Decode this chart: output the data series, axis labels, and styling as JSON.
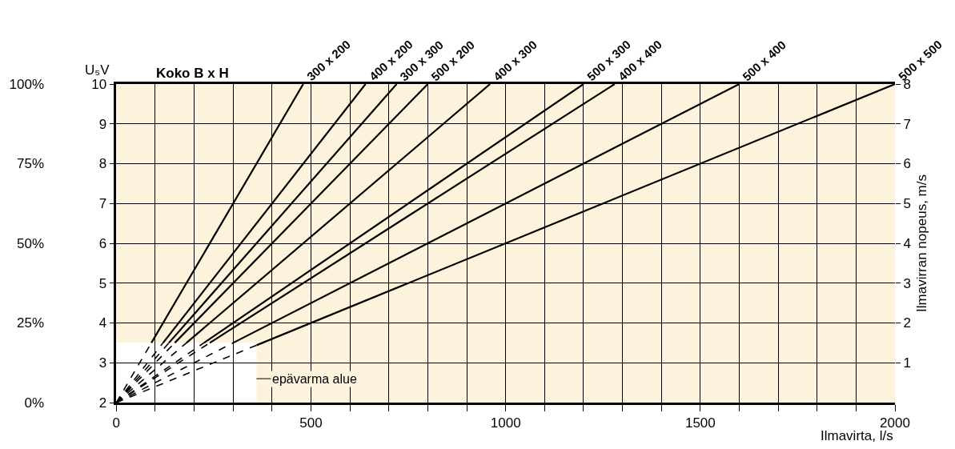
{
  "chart_data": {
    "type": "line",
    "legend_title": "Koko B x H",
    "ylabel": "U₅V",
    "y2label": "Ilmavirran nopeus, m/s",
    "xlabel": "Ilmavirta, l/s",
    "xlim": [
      0,
      2000
    ],
    "xticks": [
      0,
      {
        "value": 100,
        "label": null
      },
      {
        "value": 200,
        "label": null
      },
      {
        "value": 300,
        "label": null
      },
      {
        "value": 400,
        "label": null
      },
      500,
      {
        "value": 600,
        "label": null
      },
      {
        "value": 700,
        "label": null
      },
      {
        "value": 800,
        "label": null
      },
      {
        "value": 900,
        "label": null
      },
      1000,
      {
        "value": 1100,
        "label": null
      },
      {
        "value": 1200,
        "label": null
      },
      {
        "value": 1300,
        "label": null
      },
      {
        "value": 1400,
        "label": null
      },
      1500,
      {
        "value": 1600,
        "label": null
      },
      {
        "value": 1700,
        "label": null
      },
      {
        "value": 1800,
        "label": null
      },
      {
        "value": 1900,
        "label": null
      },
      2000
    ],
    "ylim": [
      2,
      10
    ],
    "yticks": [
      2,
      3,
      4,
      5,
      6,
      7,
      8,
      9,
      10
    ],
    "y2lim": [
      0,
      8
    ],
    "y2ticks": [
      1,
      2,
      3,
      4,
      5,
      6,
      7,
      8
    ],
    "y3lim": [
      0,
      100
    ],
    "y3ticks": [
      {
        "value": 0,
        "label": "0%"
      },
      {
        "value": 25,
        "label": "25%"
      },
      {
        "value": 50,
        "label": "50%"
      },
      {
        "value": 75,
        "label": "75%"
      },
      {
        "value": 100,
        "label": "100%"
      }
    ],
    "grid": true,
    "bands": [
      {
        "axis": "y",
        "from": 3.5,
        "to": 10,
        "color": "#fdf3dc"
      },
      {
        "axis": "x",
        "from": 360,
        "to": 2000,
        "color": "#fdf3dc"
      }
    ],
    "annotations": [
      "epävarma alue"
    ],
    "series": [
      {
        "color": "#000000",
        "line_style": "dashed",
        "x": [
          0,
          90
        ],
        "values": [
          2,
          3.5
        ]
      },
      {
        "name": "300 x 200",
        "color": "#000000",
        "line_style": "solid",
        "x": [
          90,
          480
        ],
        "values": [
          3.5,
          10
        ]
      },
      {
        "color": "#000000",
        "line_style": "dashed",
        "x": [
          0,
          120
        ],
        "values": [
          2,
          3.5
        ]
      },
      {
        "name": "400 x 200",
        "color": "#000000",
        "line_style": "solid",
        "x": [
          120,
          640
        ],
        "values": [
          3.5,
          10
        ]
      },
      {
        "color": "#000000",
        "line_style": "dashed",
        "x": [
          0,
          135
        ],
        "values": [
          2,
          3.5
        ]
      },
      {
        "name": "300 x 300",
        "color": "#000000",
        "line_style": "solid",
        "x": [
          135,
          720
        ],
        "values": [
          3.5,
          10
        ]
      },
      {
        "color": "#000000",
        "line_style": "dashed",
        "x": [
          0,
          150
        ],
        "values": [
          2,
          3.5
        ]
      },
      {
        "name": "500 x 200",
        "color": "#000000",
        "line_style": "solid",
        "x": [
          150,
          800
        ],
        "values": [
          3.5,
          10
        ]
      },
      {
        "color": "#000000",
        "line_style": "dashed",
        "x": [
          0,
          180
        ],
        "values": [
          2,
          3.5
        ]
      },
      {
        "name": "400 x 300",
        "color": "#000000",
        "line_style": "solid",
        "x": [
          180,
          960
        ],
        "values": [
          3.5,
          10
        ]
      },
      {
        "color": "#000000",
        "line_style": "dashed",
        "x": [
          0,
          225
        ],
        "values": [
          2,
          3.5
        ]
      },
      {
        "name": "500 x 300",
        "color": "#000000",
        "line_style": "solid",
        "x": [
          225,
          1200
        ],
        "values": [
          3.5,
          10
        ]
      },
      {
        "color": "#000000",
        "line_style": "dashed",
        "x": [
          0,
          240
        ],
        "values": [
          2,
          3.5
        ]
      },
      {
        "name": "400 x 400",
        "color": "#000000",
        "line_style": "solid",
        "x": [
          240,
          1280
        ],
        "values": [
          3.5,
          10
        ]
      },
      {
        "color": "#000000",
        "line_style": "dashed",
        "x": [
          0,
          300
        ],
        "values": [
          2,
          3.5
        ]
      },
      {
        "name": "500 x 400",
        "color": "#000000",
        "line_style": "solid",
        "x": [
          300,
          1600
        ],
        "values": [
          3.5,
          10
        ]
      },
      {
        "color": "#000000",
        "line_style": "dashed",
        "x": [
          0,
          360
        ],
        "values": [
          2,
          3.44
        ]
      },
      {
        "name": "500 x 500",
        "color": "#000000",
        "line_style": "solid",
        "x": [
          360,
          2000
        ],
        "values": [
          3.44,
          10
        ]
      }
    ]
  }
}
